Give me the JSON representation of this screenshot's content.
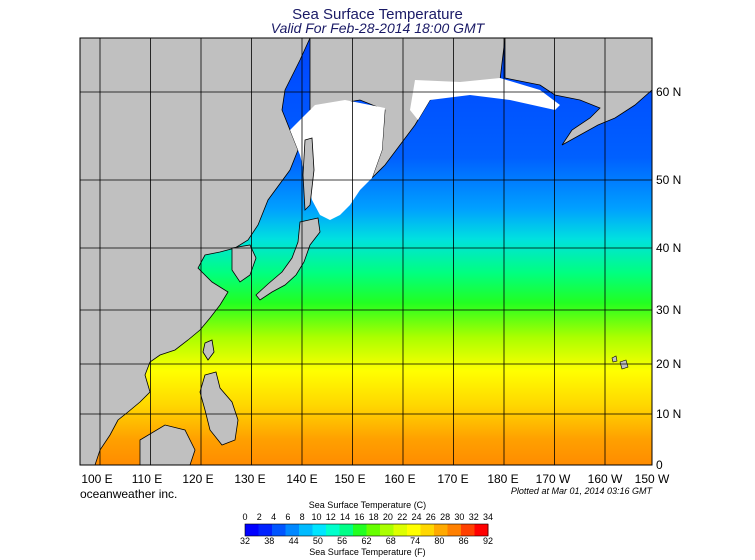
{
  "title": "Sea Surface Temperature",
  "subtitle": "Valid For Feb-28-2014 18:00 GMT",
  "brand": "oceanweather inc.",
  "plotted": "Plotted at Mar 01, 2014 03:16 GMT",
  "colorbar": {
    "celsius_label": "Sea Surface Temperature (C)",
    "fahrenheit_label": "Sea Surface Temperature (F)",
    "celsius_ticks": [
      "0",
      "2",
      "4",
      "6",
      "8",
      "10",
      "12",
      "14",
      "16",
      "18",
      "20",
      "22",
      "24",
      "26",
      "28",
      "30",
      "32",
      "34"
    ],
    "fahrenheit_ticks": [
      "32",
      "38",
      "44",
      "50",
      "56",
      "62",
      "68",
      "74",
      "80",
      "86",
      "92"
    ],
    "colors": [
      "#0000ff",
      "#0022ff",
      "#0055ff",
      "#0088ff",
      "#00bbff",
      "#00e5ff",
      "#00ffcc",
      "#00ff88",
      "#22ff22",
      "#66ff00",
      "#aaff00",
      "#ddff00",
      "#ffff00",
      "#ffd700",
      "#ffaa00",
      "#ff8000",
      "#ff4000",
      "#ff0000"
    ]
  },
  "lon_labels": [
    "100 E",
    "110 E",
    "120 E",
    "130 E",
    "140 E",
    "150 E",
    "160 E",
    "170 E",
    "180 E",
    "170 W",
    "160 W",
    "150 W"
  ],
  "lat_labels": [
    "60 N",
    "50 N",
    "40 N",
    "30 N",
    "20 N",
    "10 N",
    "0"
  ]
}
